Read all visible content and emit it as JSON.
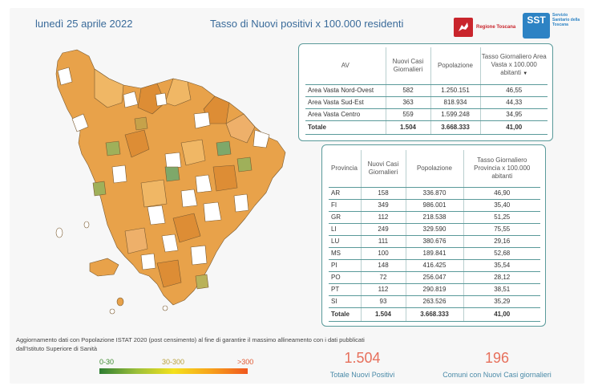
{
  "header": {
    "date": "lunedì 25 aprile 2022",
    "title": "Tasso di Nuovi positivi x 100.000 residenti",
    "logo_regione": "Regione Toscana",
    "logo_sst_mark": "SST",
    "logo_sst_text": "Servizio Sanitario della Toscana"
  },
  "av_table": {
    "headers": [
      "AV",
      "Nuovi Casi Giornalieri",
      "Popolazione",
      "Tasso Giornaliero Area Vasta x 100.000 abitanti"
    ],
    "rows": [
      [
        "Area Vasta Nord-Ovest",
        "582",
        "1.250.151",
        "46,55"
      ],
      [
        "Area Vasta Sud-Est",
        "363",
        "818.934",
        "44,33"
      ],
      [
        "Area Vasta Centro",
        "559",
        "1.599.248",
        "34,95"
      ]
    ],
    "total": [
      "Totale",
      "1.504",
      "3.668.333",
      "41,00"
    ]
  },
  "prov_table": {
    "headers": [
      "Provincia",
      "Nuovi Casi Giornalieri",
      "Popolazione",
      "Tasso Giornaliero Provincia x 100.000 abitanti"
    ],
    "rows": [
      [
        "AR",
        "158",
        "336.870",
        "46,90"
      ],
      [
        "FI",
        "349",
        "986.001",
        "35,40"
      ],
      [
        "GR",
        "112",
        "218.538",
        "51,25"
      ],
      [
        "LI",
        "249",
        "329.590",
        "75,55"
      ],
      [
        "LU",
        "111",
        "380.676",
        "29,16"
      ],
      [
        "MS",
        "100",
        "189.841",
        "52,68"
      ],
      [
        "PI",
        "148",
        "416.425",
        "35,54"
      ],
      [
        "PO",
        "72",
        "256.047",
        "28,12"
      ],
      [
        "PT",
        "112",
        "290.819",
        "38,51"
      ],
      [
        "SI",
        "93",
        "263.526",
        "35,29"
      ]
    ],
    "total": [
      "Totale",
      "1.504",
      "3.668.333",
      "41,00"
    ]
  },
  "note": "Aggiornamento dati con Popolazione ISTAT 2020 (post censimento) al fine di garantire il massimo allineamento con i dati pubblicati dall'Istituto Superiore di Sanità",
  "legend": {
    "labels": [
      "0-30",
      "30-300",
      ">300"
    ],
    "colors": [
      "#2e7d32",
      "#f4e11c",
      "#f0571f"
    ]
  },
  "kpis": [
    {
      "value": "1.504",
      "label": "Totale Nuovi Positivi"
    },
    {
      "value": "196",
      "label": "Comuni con Nuovi Casi giornalieri"
    }
  ],
  "colors": {
    "accent": "#3a6b9a",
    "table_border": "#5a9a9a",
    "kpi_value": "#e7705c",
    "map_orange": "#e9a04a",
    "map_green": "#7ea86a",
    "map_white": "#ffffff"
  }
}
